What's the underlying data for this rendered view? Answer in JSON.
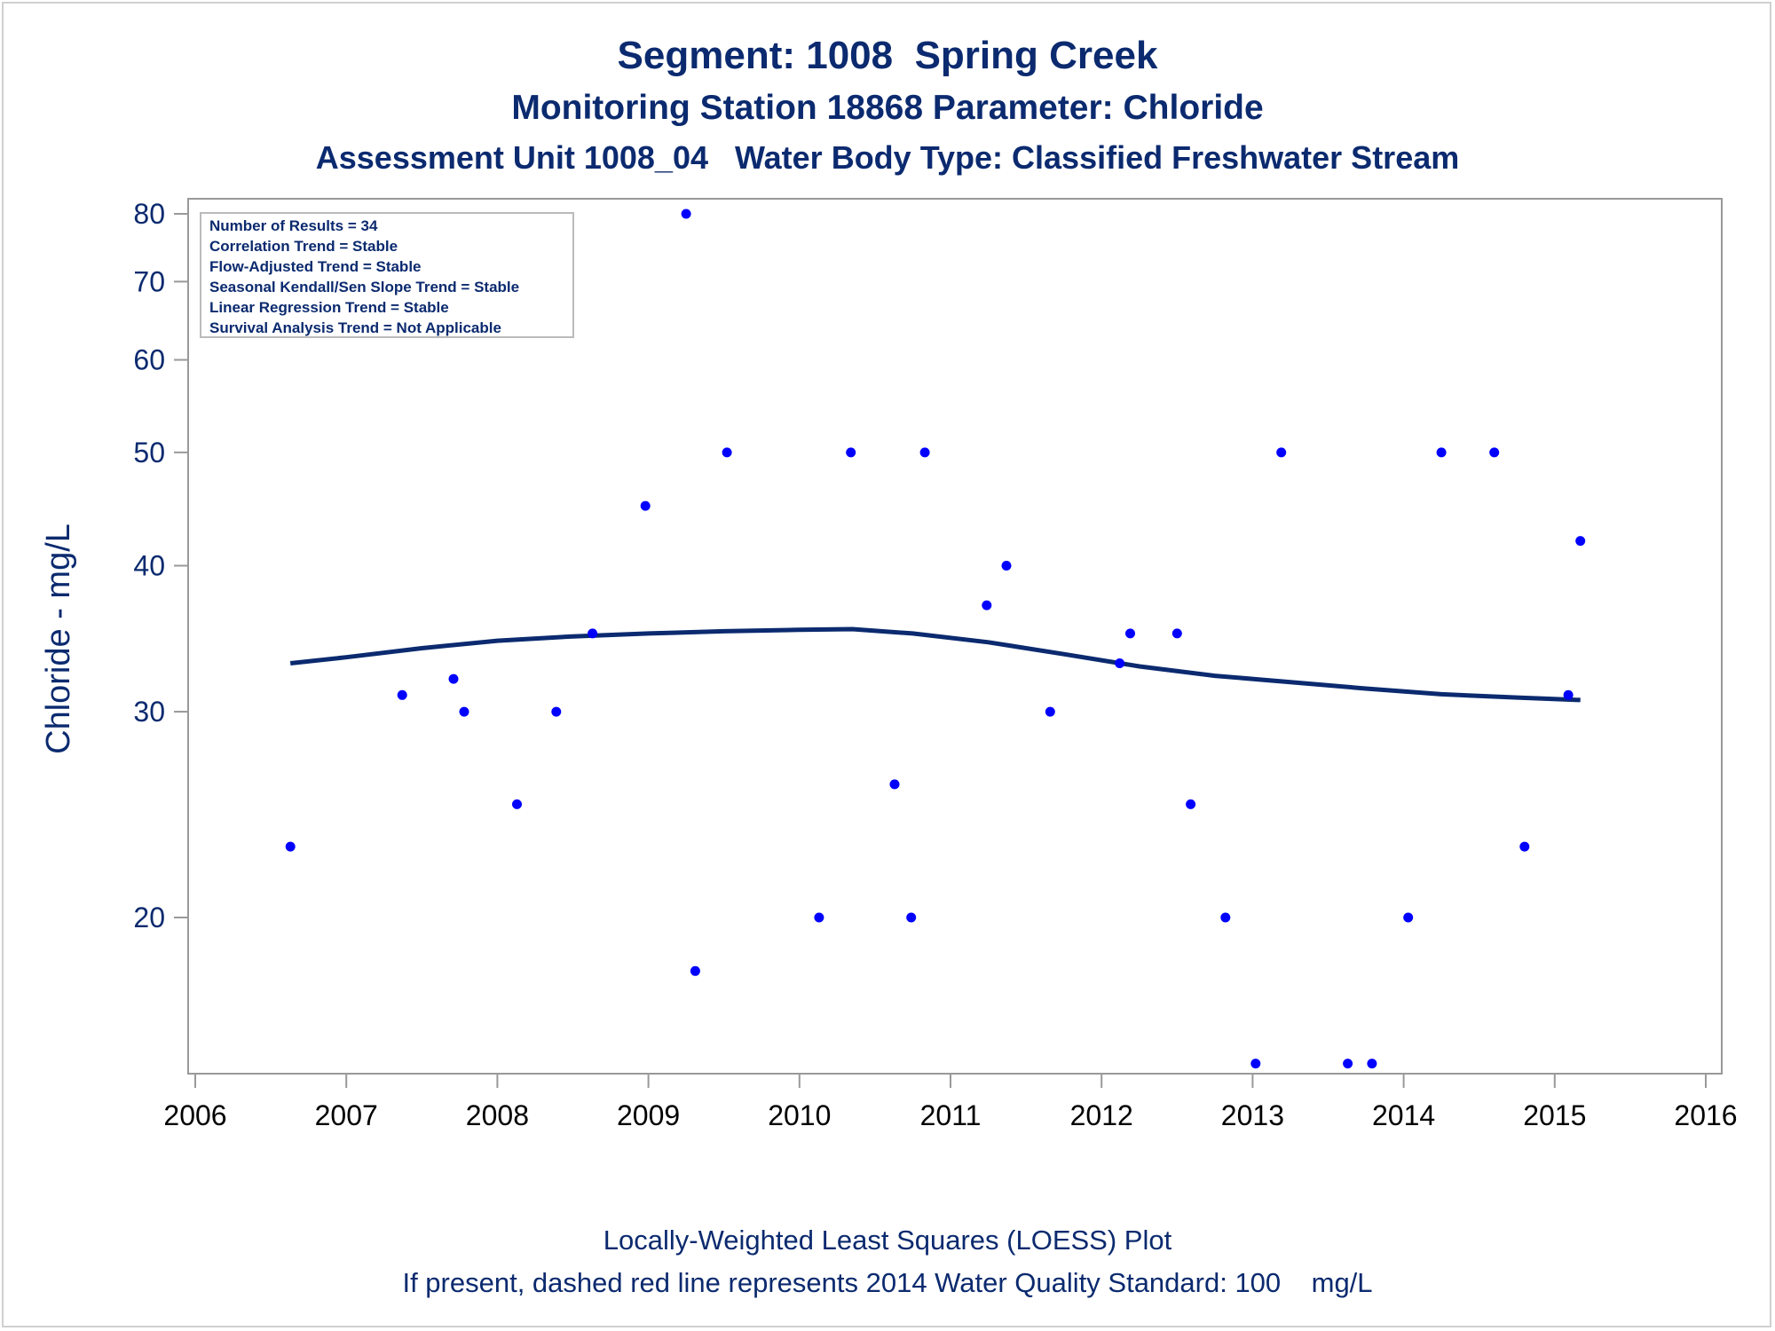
{
  "titles": {
    "line1": "Segment: 1008  Spring Creek",
    "line2": "Monitoring Station 18868 Parameter: Chloride",
    "line3": "Assessment Unit 1008_04   Water Body Type: Classified Freshwater Stream"
  },
  "footer": {
    "line1": "Locally-Weighted Least Squares (LOESS) Plot",
    "line2": "If present, dashed red line represents 2014 Water Quality Standard: 100    mg/L"
  },
  "inset": {
    "lines": [
      "Number of Results = 34",
      "Correlation Trend = Stable",
      "Flow-Adjusted Trend = Stable",
      "Seasonal Kendall/Sen Slope Trend = Stable",
      "Linear Regression Trend = Stable",
      "Survival Analysis Trend = Not Applicable"
    ]
  },
  "colors": {
    "text": "#0b2a6f",
    "points": "#0000ff",
    "loess": "#0b2a6f",
    "axis": "#999999"
  },
  "chart_data": {
    "type": "scatter",
    "ylabel": "Chloride - mg/L",
    "xlabel": "",
    "y_scale": "log",
    "xlim": [
      2006,
      2016
    ],
    "ylim": [
      15,
      80
    ],
    "x_ticks": [
      "2006",
      "2007",
      "2008",
      "2009",
      "2010",
      "2011",
      "2012",
      "2013",
      "2014",
      "2015",
      "2016"
    ],
    "y_ticks": [
      20,
      30,
      40,
      50,
      60,
      70,
      80
    ],
    "grid": false,
    "series": [
      {
        "type": "scatter",
        "points": [
          [
            2006.63,
            23
          ],
          [
            2007.37,
            31
          ],
          [
            2007.71,
            32
          ],
          [
            2007.78,
            30
          ],
          [
            2008.13,
            25
          ],
          [
            2008.39,
            30
          ],
          [
            2008.63,
            35
          ],
          [
            2008.98,
            45
          ],
          [
            2009.25,
            80
          ],
          [
            2009.31,
            18
          ],
          [
            2009.52,
            50
          ],
          [
            2010.13,
            20
          ],
          [
            2010.34,
            50
          ],
          [
            2010.63,
            26
          ],
          [
            2010.74,
            20
          ],
          [
            2010.83,
            50
          ],
          [
            2011.24,
            37
          ],
          [
            2011.37,
            40
          ],
          [
            2011.66,
            30
          ],
          [
            2012.12,
            33
          ],
          [
            2012.19,
            35
          ],
          [
            2012.5,
            35
          ],
          [
            2012.59,
            25
          ],
          [
            2012.82,
            20
          ],
          [
            2013.02,
            15
          ],
          [
            2013.19,
            50
          ],
          [
            2013.63,
            15
          ],
          [
            2013.79,
            15
          ],
          [
            2014.03,
            20
          ],
          [
            2014.25,
            50
          ],
          [
            2014.6,
            50
          ],
          [
            2014.8,
            23
          ],
          [
            2015.09,
            31
          ],
          [
            2015.17,
            42
          ]
        ]
      },
      {
        "type": "line",
        "points": [
          [
            2006.63,
            33.0
          ],
          [
            2007.0,
            33.4
          ],
          [
            2007.5,
            34.0
          ],
          [
            2008.0,
            34.5
          ],
          [
            2008.5,
            34.8
          ],
          [
            2009.0,
            35.0
          ],
          [
            2009.5,
            35.15
          ],
          [
            2010.0,
            35.25
          ],
          [
            2010.35,
            35.3
          ],
          [
            2010.75,
            35.0
          ],
          [
            2011.25,
            34.4
          ],
          [
            2011.75,
            33.6
          ],
          [
            2012.25,
            32.8
          ],
          [
            2012.75,
            32.2
          ],
          [
            2013.25,
            31.8
          ],
          [
            2013.75,
            31.4
          ],
          [
            2014.25,
            31.05
          ],
          [
            2014.75,
            30.85
          ],
          [
            2015.17,
            30.7
          ]
        ]
      }
    ]
  }
}
